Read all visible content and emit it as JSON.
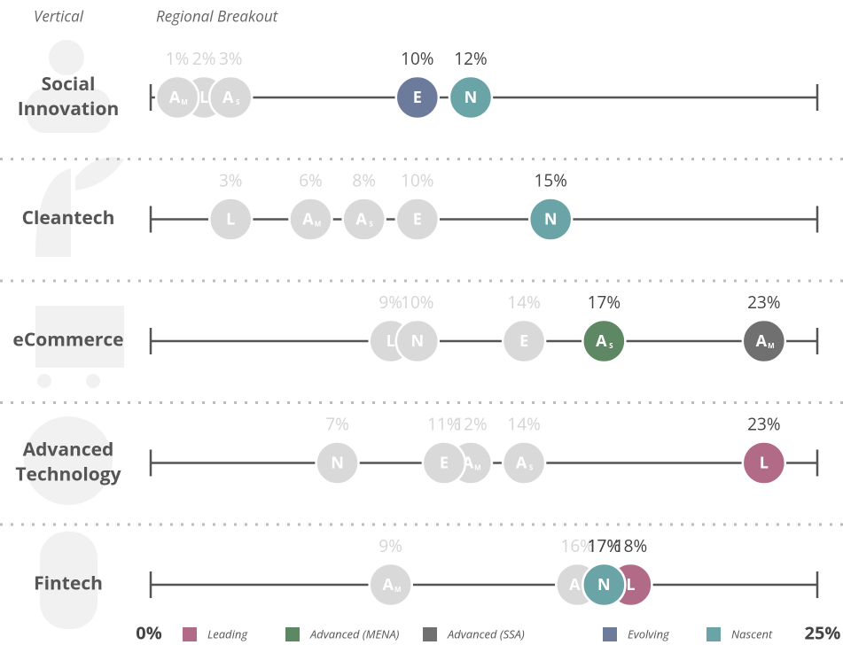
{
  "chart_data": {
    "type": "dot",
    "headers": [
      "Vertical",
      "Regional Breakout"
    ],
    "categories": [
      "Social Innovation",
      "Cleantech",
      "eCommerce",
      "Advanced Technology",
      "Fintech"
    ],
    "xlim": [
      0,
      25
    ],
    "xticks": [
      {
        "value": 0,
        "label": "0%"
      },
      {
        "value": 25,
        "label": "25%"
      }
    ],
    "muted_color": "#d9d9d9",
    "series": [
      {
        "name": "Leading",
        "color": "#b16b86",
        "letter": "L",
        "values": [
          2,
          3,
          9,
          23,
          18
        ],
        "value_labels": [
          "2%",
          "3%",
          "9%",
          "23%",
          "18%"
        ],
        "highlight": [
          false,
          false,
          false,
          true,
          true
        ]
      },
      {
        "name": "Advanced (MENA)",
        "color": "#5e8864",
        "letter": "A",
        "sub": "S",
        "values": [
          3,
          8,
          17,
          14,
          16
        ],
        "value_labels": [
          "3%",
          "8%",
          "17%",
          "14%",
          "16%"
        ],
        "highlight": [
          false,
          false,
          true,
          false,
          false
        ]
      },
      {
        "name": "Advanced (SSA)",
        "color": "#707070",
        "letter": "A",
        "sub": "M",
        "values": [
          1,
          6,
          23,
          12,
          9
        ],
        "value_labels": [
          "1%",
          "6%",
          "23%",
          "12%",
          "9%"
        ],
        "highlight": [
          false,
          false,
          true,
          false,
          false
        ]
      },
      {
        "name": "Evolving",
        "color": "#6c7a9c",
        "letter": "E",
        "values": [
          10,
          10,
          14,
          11,
          17
        ],
        "value_labels": [
          "10%",
          "10%",
          "14%",
          "11%",
          "17%"
        ],
        "highlight": [
          true,
          false,
          false,
          false,
          true
        ]
      },
      {
        "name": "Nascent",
        "color": "#6aa4a7",
        "letter": "N",
        "values": [
          12,
          15,
          10,
          7,
          17
        ],
        "value_labels": [
          "12%",
          "15%",
          "10%",
          "7%",
          "17%"
        ],
        "highlight": [
          true,
          true,
          false,
          false,
          true
        ]
      }
    ]
  }
}
